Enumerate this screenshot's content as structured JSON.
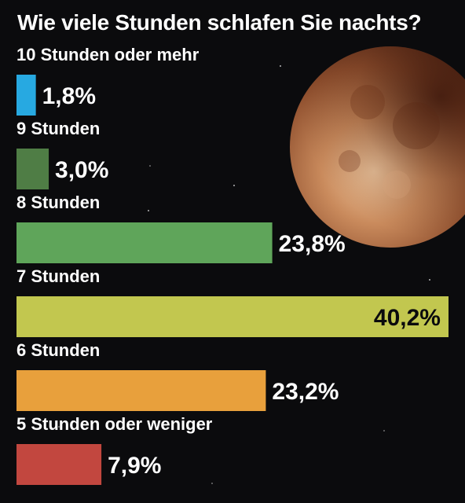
{
  "chart_data": {
    "type": "bar",
    "orientation": "horizontal",
    "title": "Wie viele Stunden schlafen Sie nachts?",
    "categories": [
      "10 Stunden oder mehr",
      "9 Stunden",
      "8 Stunden",
      "7 Stunden",
      "6 Stunden",
      "5 Stunden oder weniger"
    ],
    "values": [
      1.8,
      3.0,
      23.8,
      40.2,
      23.2,
      7.9
    ],
    "value_labels": [
      "1,8%",
      "3,0%",
      "23,8%",
      "40,2%",
      "23,2%",
      "7,9%"
    ],
    "colors": [
      "#27a9e1",
      "#4f7d45",
      "#5fa55a",
      "#c2c74f",
      "#e8a03c",
      "#c2473f"
    ],
    "xlim": [
      0,
      40.2
    ],
    "background": "#0b0b0d",
    "label_color": "#ffffff",
    "value_label_color_inside": "#0b0b0d",
    "value_label_color_outside": "#ffffff"
  }
}
